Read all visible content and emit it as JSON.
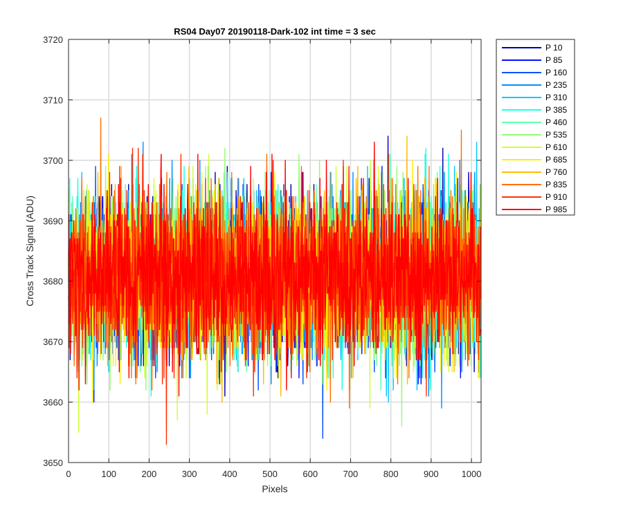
{
  "chart_data": {
    "type": "line",
    "title": "RS04 Day07 20190118-Dark-102 int time = 3 sec",
    "xlabel": "Pixels",
    "ylabel": "Cross Track Signal (ADU)",
    "xlim": [
      0,
      1024
    ],
    "ylim": [
      3650,
      3720
    ],
    "xticks": [
      0,
      100,
      200,
      300,
      400,
      500,
      600,
      700,
      800,
      900,
      1000
    ],
    "yticks": [
      3650,
      3660,
      3670,
      3680,
      3690,
      3700,
      3710,
      3720
    ],
    "grid": true,
    "legend_position": "outside-right",
    "noise": {
      "mean": 3681,
      "sigma": 6.5,
      "n_points": 1024
    },
    "series": [
      {
        "name": "P 10",
        "color": "#0000b3"
      },
      {
        "name": "P 85",
        "color": "#0010ff"
      },
      {
        "name": "P 160",
        "color": "#0050ff"
      },
      {
        "name": "P 235",
        "color": "#0090ff"
      },
      {
        "name": "P 310",
        "color": "#00c8ff"
      },
      {
        "name": "P 385",
        "color": "#20ffe0"
      },
      {
        "name": "P 460",
        "color": "#60ffb0"
      },
      {
        "name": "P 535",
        "color": "#90ff70"
      },
      {
        "name": "P 610",
        "color": "#d0ff30"
      },
      {
        "name": "P 685",
        "color": "#ffee00"
      },
      {
        "name": "P 760",
        "color": "#ffbb00"
      },
      {
        "name": "P 835",
        "color": "#ff7000"
      },
      {
        "name": "P 910",
        "color": "#ff3000"
      },
      {
        "name": "P 985",
        "color": "#ff0000"
      }
    ]
  }
}
